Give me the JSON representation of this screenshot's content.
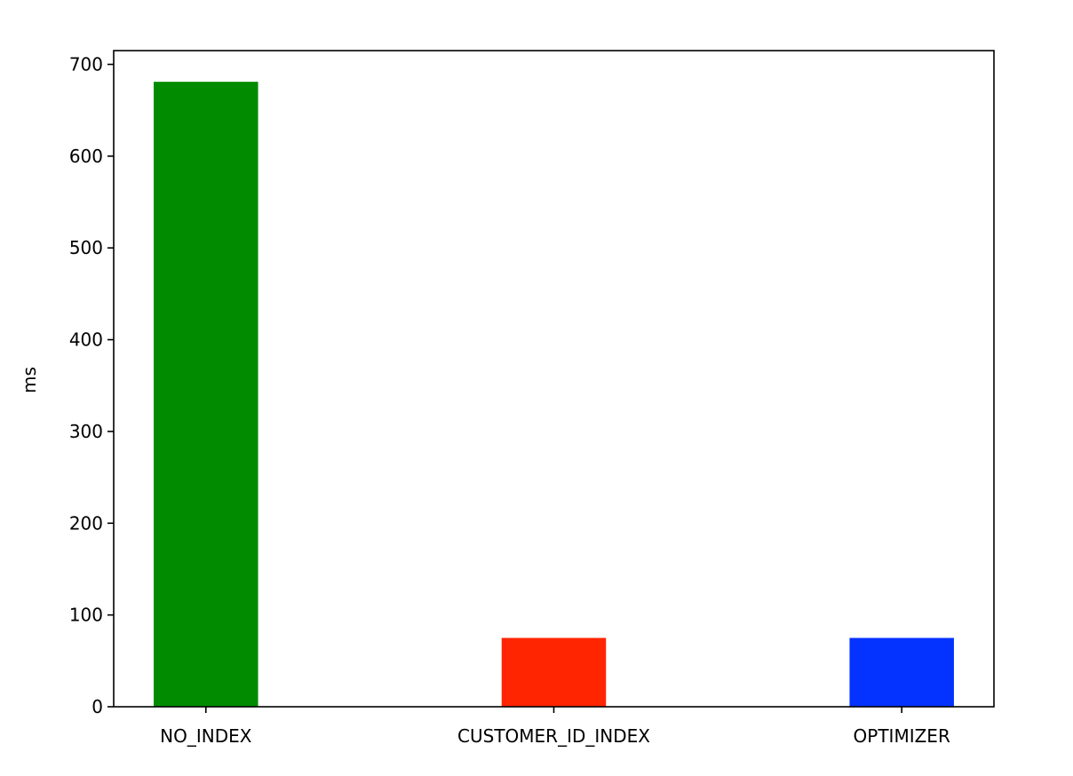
{
  "chart_data": {
    "type": "bar",
    "title": "",
    "xlabel": "",
    "ylabel": "ms",
    "ylim": [
      0,
      715
    ],
    "yticks": [
      0,
      100,
      200,
      300,
      400,
      500,
      600,
      700
    ],
    "grid": false,
    "legend": "none",
    "categories": [
      "NO_INDEX",
      "CUSTOMER_ID_INDEX",
      "OPTIMIZER"
    ],
    "values": [
      681,
      75,
      75
    ],
    "colors": [
      "#008b00",
      "#ff2500",
      "#0433ff"
    ]
  }
}
